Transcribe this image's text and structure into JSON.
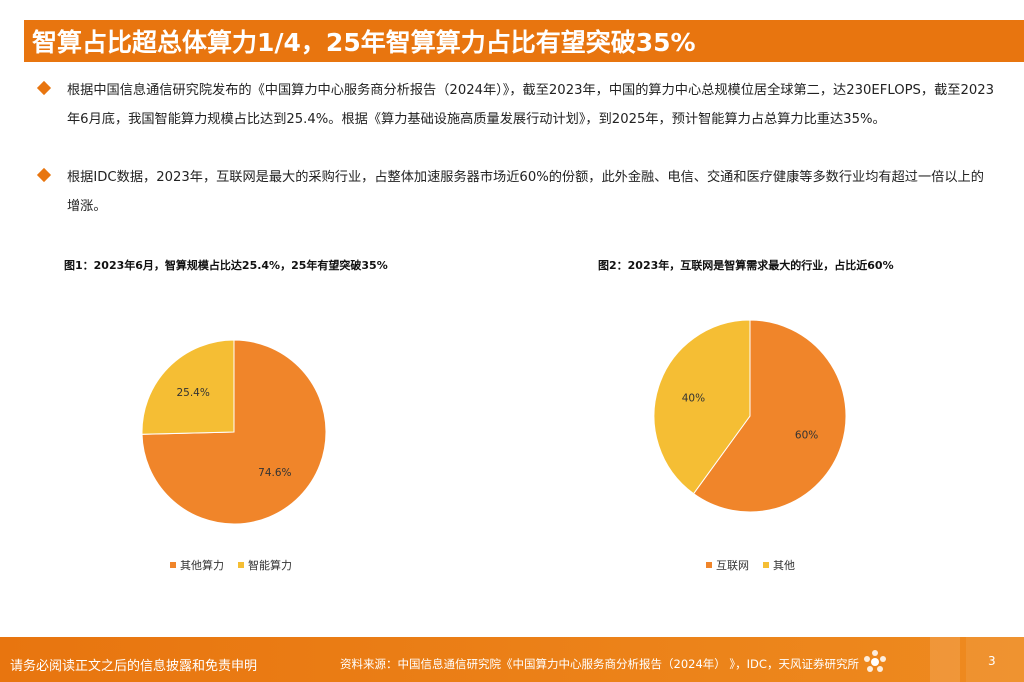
{
  "page": {
    "title": "智算占比超总体算力1/4，25年智算算力占比有望突破35%",
    "page_number": "3"
  },
  "bullets": [
    "根据中国信息通信研究院发布的《中国算力中心服务商分析报告（2024年）》，截至2023年，中国的算力中心总规模位居全球第二，达230EFLOPS，截至2023年6月底，我国智能算力规模占比达到25.4%。根据《算力基础设施高质量发展行动计划》，到2025年，预计智能算力占总算力比重达35%。",
    "根据IDC数据，2023年，互联网是最大的采购行业，占整体加速服务器市场近60%的份额，此外金融、电信、交通和医疗健康等多数行业均有超过一倍以上的增涨。"
  ],
  "chart_data": [
    {
      "type": "pie",
      "title": "图1：2023年6月，智算规模占比达25.4%，25年有望突破35%",
      "slices": [
        {
          "name": "其他算力",
          "value": 74.6,
          "label": "74.6%",
          "color": "#F0852A"
        },
        {
          "name": "智能算力",
          "value": 25.4,
          "label": "25.4%",
          "color": "#F5BE34"
        }
      ],
      "legend_position": "bottom"
    },
    {
      "type": "pie",
      "title": "图2：2023年，互联网是智算需求最大的行业，占比近60%",
      "slices": [
        {
          "name": "互联网",
          "value": 60,
          "label": "60%",
          "color": "#F0852A"
        },
        {
          "name": "其他",
          "value": 40,
          "label": "40%",
          "color": "#F5BE34"
        }
      ],
      "legend_position": "bottom"
    }
  ],
  "footer": {
    "disclaimer": "请务必阅读正文之后的信息披露和免责申明",
    "source": "资料来源：中国信息通信研究院《中国算力中心服务商分析报告（2024年） 》，IDC，天风证券研究所"
  },
  "colors": {
    "accent": "#E8750F",
    "slice_primary": "#F0852A",
    "slice_secondary": "#F5BE34"
  }
}
